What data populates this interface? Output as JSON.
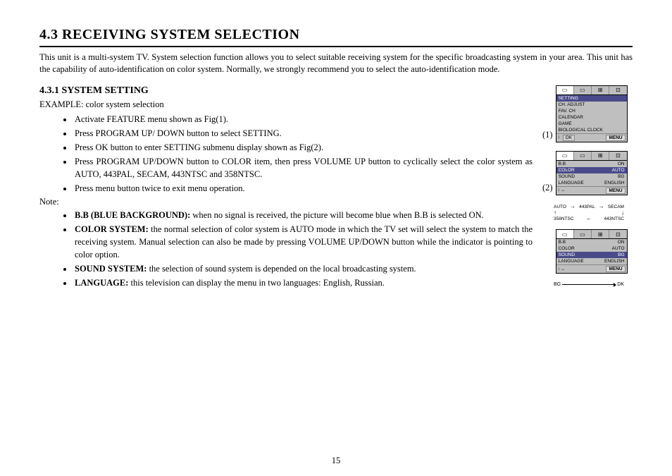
{
  "heading": "4.3 RECEIVING SYSTEM SELECTION",
  "intro": "This unit is a multi-system TV. System selection function allows you to select suitable receiving system for the specific broadcasting system in your area. This unit has the capability of auto-identification on color system. Normally, we strongly recommend you to select the auto-identification mode.",
  "subheading": "4.3.1 SYSTEM SETTING",
  "example": "EXAMPLE: color system selection",
  "steps": [
    "Activate FEATURE menu shown as Fig(1).",
    "Press PROGRAM UP/ DOWN button to select SETTING.",
    "Press OK button to enter SETTING submenu display shown as Fig(2).",
    "Press PROGRAM UP/DOWN button to COLOR item, then press VOLUME UP button to cyclically select the color system as AUTO, 443PAL, SECAM, 443NTSC and 358NTSC.",
    "Press menu button twice to exit menu operation."
  ],
  "note_label": "Note:",
  "notes": [
    {
      "term": "B.B (BLUE BACKGROUND):",
      "text": " when no signal is received, the picture will become blue when B.B is selected ON."
    },
    {
      "term": "COLOR SYSTEM:",
      "text": " the normal selection of color system is AUTO mode in which the TV set will select the system to match the receiving system. Manual selection can also be made by pressing VOLUME UP/DOWN button while the indicator is pointing to color option."
    },
    {
      "term": "SOUND SYSTEM:",
      "text": " the selection of sound system is depended on the local broadcasting system."
    },
    {
      "term": "LANGUAGE:",
      "text": " this television can display the menu in two languages: English, Russian."
    }
  ],
  "page_number": "15",
  "fig_labels": {
    "f1": "(1)",
    "f2": "(2)"
  },
  "osd_icons": {
    "tv": "◻",
    "tv2": "◻",
    "grid": "⊞",
    "grid2": "⊡"
  },
  "fig1": {
    "rows": [
      {
        "l": "SETTING",
        "r": "",
        "hl": true
      },
      {
        "l": "CH. ADJUST",
        "r": "",
        "hl": false
      },
      {
        "l": "FAV. CH",
        "r": "",
        "hl": false
      },
      {
        "l": "CALENDAR",
        "r": "",
        "hl": false
      },
      {
        "l": "GAME",
        "r": "",
        "hl": false
      },
      {
        "l": "BIOLOGICAL CLOCK",
        "r": "",
        "hl": false
      }
    ],
    "foot_arrows": "↕",
    "foot_ok": "OK",
    "foot_menu": "MENU"
  },
  "fig2": {
    "rows": [
      {
        "l": "B.B",
        "r": "ON",
        "hl": false
      },
      {
        "l": "COLOR",
        "r": "AUTO",
        "hl": true
      },
      {
        "l": "SOUND",
        "r": "BG",
        "hl": false
      },
      {
        "l": "LANGUAGE",
        "r": "ENGLISH",
        "hl": false
      }
    ],
    "foot_arrows": "↕ ↔",
    "foot_menu": "MENU"
  },
  "cycle": {
    "top": [
      "AUTO",
      "443PAL",
      "SECAM"
    ],
    "bottom": [
      "358NTSC",
      "443NTSC"
    ]
  },
  "fig3": {
    "rows": [
      {
        "l": "B.B",
        "r": "ON",
        "hl": false
      },
      {
        "l": "COLOR",
        "r": "AUTO",
        "hl": false
      },
      {
        "l": "SOUND",
        "r": "BG",
        "hl": true
      },
      {
        "l": "LANGUAGE",
        "r": "ENGLISH",
        "hl": false
      }
    ],
    "foot_arrows": "↕ ↔",
    "foot_menu": "MENU"
  },
  "bg_dk": {
    "left": "BG",
    "right": "DK"
  }
}
